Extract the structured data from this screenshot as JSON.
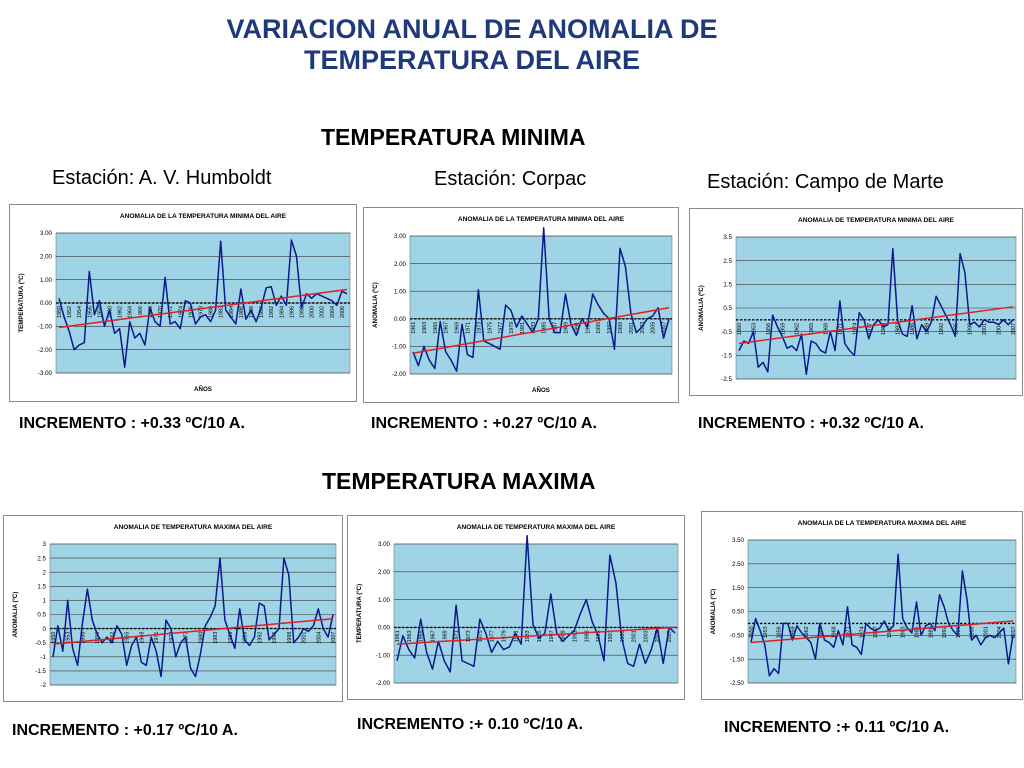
{
  "page": {
    "title_line1": "VARIACION ANUAL DE ANOMALIA DE",
    "title_line2": "TEMPERATURA DEL AIRE",
    "min_section": "TEMPERATURA  MINIMA",
    "max_section": "TEMPERATURA  MAXIMA",
    "station_1": "Estación: A. V. Humboldt",
    "station_2": "Estación: Corpac",
    "station_3": "Estación: Campo de Marte",
    "min_inc_1": "INCREMENTO : +0.33 ºC/10 A.",
    "min_inc_2": "INCREMENTO : +0.27 ºC/10 A.",
    "min_inc_3": "INCREMENTO : +0.32 ºC/10 A.",
    "max_inc_1": "INCREMENTO : +0.17 ºC/10 A.",
    "max_inc_2": "INCREMENTO :+ 0.10 ºC/10 A.",
    "max_inc_3": "INCREMENTO :+ 0.11 ºC/10 A."
  },
  "colors": {
    "title": "#1f3a7a",
    "series": "#0a1a8c",
    "trend": "#e02020",
    "plot_bg": "#9fd3e6",
    "grid": "#3a3a3a"
  },
  "chart_data": [
    {
      "type": "line",
      "title": "ANOMALIA DE LA TEMPERATURA MINIMA DEL AIRE",
      "xlabel": "AÑOS",
      "ylabel": "TEMPERATURA (ºC)",
      "ylim": [
        -3,
        3
      ],
      "yticks": [
        -3,
        -2,
        -1,
        0,
        1,
        2,
        3
      ],
      "ytick_decimals": 2,
      "x": [
        1950,
        1951,
        1952,
        1953,
        1954,
        1955,
        1956,
        1957,
        1958,
        1959,
        1960,
        1961,
        1962,
        1963,
        1964,
        1965,
        1966,
        1967,
        1968,
        1969,
        1970,
        1971,
        1972,
        1973,
        1974,
        1975,
        1976,
        1977,
        1978,
        1979,
        1980,
        1981,
        1982,
        1983,
        1984,
        1985,
        1986,
        1987,
        1988,
        1989,
        1990,
        1991,
        1992,
        1993,
        1994,
        1995,
        1996,
        1997,
        1998,
        1999,
        2000,
        2001,
        2002,
        2003,
        2004,
        2005,
        2006,
        2007
      ],
      "xtick_labels": [
        "1950",
        "1952",
        "1954",
        "1956",
        "1958",
        "1960",
        "1962",
        "1964",
        "1966",
        "1968",
        "1970",
        "1972",
        "1974",
        "1976",
        "1978",
        "1980",
        "1982",
        "1984",
        "1986",
        "1988",
        "1990",
        "1992",
        "1994",
        "1996",
        "1998",
        "2000",
        "2002",
        "2004",
        "2006"
      ],
      "xtick_step": 2,
      "series": [
        {
          "values": [
            0.2,
            -0.6,
            -1.2,
            -2.0,
            -1.8,
            -1.7,
            1.35,
            -0.5,
            0.1,
            -1.0,
            -0.3,
            -1.3,
            -1.1,
            -2.75,
            -0.8,
            -1.5,
            -1.3,
            -1.8,
            -0.2,
            -0.8,
            -1.0,
            1.1,
            -0.9,
            -0.8,
            -1.1,
            0.1,
            0.0,
            -0.9,
            -0.6,
            -0.5,
            -0.8,
            -0.3,
            2.65,
            -0.3,
            -0.6,
            -0.9,
            0.6,
            -0.7,
            -0.3,
            -0.8,
            -0.2,
            0.65,
            0.7,
            -0.1,
            0.3,
            -0.1,
            2.7,
            2.0,
            -0.2,
            0.4,
            0.2,
            0.4,
            0.3,
            0.2,
            0.1,
            -0.1,
            0.5,
            0.4
          ]
        }
      ],
      "trend": [
        -1.05,
        0.58
      ]
    },
    {
      "type": "line",
      "title": "ANOMALIA  DE LA TEMPERATURA MINIMA DEL AIRE",
      "xlabel": "AÑOS",
      "ylabel": "ANOMALIA (ºC)",
      "ylim": [
        -2,
        3
      ],
      "yticks": [
        -2,
        -1,
        0,
        1,
        2,
        3
      ],
      "ytick_decimals": 2,
      "x": [
        1961,
        1962,
        1963,
        1964,
        1965,
        1966,
        1967,
        1968,
        1969,
        1970,
        1971,
        1972,
        1973,
        1974,
        1975,
        1976,
        1977,
        1978,
        1979,
        1980,
        1981,
        1982,
        1983,
        1984,
        1985,
        1986,
        1987,
        1988,
        1989,
        1990,
        1991,
        1992,
        1993,
        1994,
        1995,
        1996,
        1997,
        1998,
        1999,
        2000,
        2001,
        2002,
        2003,
        2004,
        2005,
        2006,
        2007,
        2008
      ],
      "xtick_labels": [
        "1961",
        "1963",
        "1965",
        "1967",
        "1969",
        "1971",
        "1973",
        "1975",
        "1977",
        "1979",
        "1981",
        "1983",
        "1985",
        "1987",
        "1989",
        "1991",
        "1993",
        "1995",
        "1997",
        "1999",
        "2001",
        "2003",
        "2005",
        "2007"
      ],
      "xtick_step": 2,
      "series": [
        {
          "values": [
            -1.2,
            -1.7,
            -1.0,
            -1.5,
            -1.8,
            -0.1,
            -1.2,
            -1.5,
            -1.9,
            -0.2,
            -1.3,
            -1.4,
            1.05,
            -0.8,
            -0.9,
            -1.0,
            -1.1,
            0.5,
            0.3,
            -0.3,
            0.1,
            -0.2,
            -0.5,
            0.0,
            3.3,
            0.0,
            -0.5,
            -0.5,
            0.9,
            -0.2,
            -0.6,
            0.0,
            -0.3,
            0.9,
            0.5,
            0.2,
            0.0,
            -1.1,
            2.55,
            1.9,
            0.2,
            -0.5,
            -0.3,
            0.0,
            0.1,
            0.4,
            -0.7,
            0.0
          ]
        }
      ],
      "trend": [
        -1.25,
        0.4
      ]
    },
    {
      "type": "line",
      "title": "ANOMALIA DE TEMPERATURA MINIMA DEL AIRE",
      "xlabel": "",
      "ylabel": "ANOMALIA (ºC)",
      "ylim": [
        -2.5,
        3.5
      ],
      "yticks": [
        -2.5,
        -1.5,
        -0.5,
        0.5,
        1.5,
        2.5,
        3.5
      ],
      "ytick_decimals": 1,
      "x": [
        1950,
        1951,
        1952,
        1953,
        1954,
        1955,
        1956,
        1957,
        1958,
        1959,
        1960,
        1961,
        1962,
        1963,
        1964,
        1965,
        1966,
        1967,
        1968,
        1969,
        1970,
        1971,
        1972,
        1973,
        1974,
        1975,
        1976,
        1977,
        1978,
        1979,
        1980,
        1981,
        1982,
        1983,
        1984,
        1985,
        1986,
        1987,
        1988,
        1989,
        1990,
        1991,
        1992,
        1993,
        1994,
        1995,
        1996,
        1997,
        1998,
        1999,
        2000,
        2001,
        2002,
        2003,
        2004,
        2005,
        2006,
        2007
      ],
      "xtick_labels": [
        "1950",
        "1953",
        "1956",
        "1959",
        "1962",
        "1965",
        "1968",
        "1971",
        "1974",
        "1977",
        "1980",
        "1983",
        "1986",
        "1989",
        "1992",
        "1995",
        "1998",
        "2001",
        "2004",
        "2007"
      ],
      "xtick_step": 3,
      "series": [
        {
          "values": [
            -1.3,
            -0.9,
            -1.0,
            -0.5,
            -2.0,
            -1.8,
            -2.2,
            0.2,
            -0.3,
            -0.7,
            -1.2,
            -1.1,
            -1.3,
            -0.6,
            -2.3,
            -0.9,
            -1.0,
            -1.3,
            -1.4,
            -0.5,
            -1.3,
            0.8,
            -1.0,
            -1.3,
            -1.5,
            0.3,
            0.0,
            -0.8,
            -0.2,
            0.0,
            -0.3,
            -0.2,
            3.0,
            0.0,
            -0.6,
            -0.7,
            0.6,
            -0.8,
            -0.2,
            -0.5,
            -0.1,
            1.0,
            0.6,
            0.2,
            -0.2,
            -0.7,
            2.8,
            2.0,
            -0.2,
            -0.1,
            -0.3,
            0.0,
            -0.1,
            -0.1,
            -0.2,
            0.0,
            -0.2,
            0.0
          ]
        }
      ],
      "trend": [
        -1.0,
        0.55
      ]
    },
    {
      "type": "line",
      "title": "ANOMALIA DE TEMPERATURA MAXIMA DEL AIRE",
      "xlabel": "",
      "ylabel": "ANOMALIA (ºC)",
      "ylim": [
        -2,
        3
      ],
      "yticks": [
        -2,
        -1.5,
        -1,
        -0.5,
        0,
        0.5,
        1,
        1.5,
        2,
        2.5,
        3
      ],
      "ytick_decimals": -1,
      "x": [
        1950,
        1951,
        1952,
        1953,
        1954,
        1955,
        1956,
        1957,
        1958,
        1959,
        1960,
        1961,
        1962,
        1963,
        1964,
        1965,
        1966,
        1967,
        1968,
        1969,
        1970,
        1971,
        1972,
        1973,
        1974,
        1975,
        1976,
        1977,
        1978,
        1979,
        1980,
        1981,
        1982,
        1983,
        1984,
        1985,
        1986,
        1987,
        1988,
        1989,
        1990,
        1991,
        1992,
        1993,
        1994,
        1995,
        1996,
        1997,
        1998,
        1999,
        2000,
        2001,
        2002,
        2003,
        2004,
        2005,
        2006,
        2007
      ],
      "xtick_labels": [
        "1950",
        "1953",
        "1956",
        "1959",
        "1962",
        "1965",
        "1968",
        "1971",
        "1974",
        "1977",
        "1980",
        "1983",
        "1986",
        "1989",
        "1992",
        "1995",
        "1998",
        "2001",
        "2004",
        "2007"
      ],
      "xtick_step": 3,
      "series": [
        {
          "values": [
            -1.0,
            0.1,
            -0.8,
            1.0,
            -0.7,
            -1.3,
            0.2,
            1.4,
            0.3,
            -0.2,
            -0.5,
            -0.3,
            -0.5,
            0.1,
            -0.2,
            -1.3,
            -0.6,
            -0.3,
            -1.2,
            -1.3,
            -0.3,
            -0.8,
            -1.7,
            0.3,
            0.0,
            -1.0,
            -0.5,
            -0.3,
            -1.4,
            -1.7,
            -0.9,
            0.1,
            0.4,
            0.8,
            2.5,
            0.3,
            -0.2,
            -0.7,
            0.7,
            -0.4,
            -0.6,
            -0.3,
            0.9,
            0.8,
            -0.4,
            -0.2,
            0.0,
            2.5,
            1.9,
            -0.5,
            -0.3,
            0.0,
            -0.1,
            0.1,
            0.7,
            0.0,
            -0.3,
            0.5
          ]
        }
      ],
      "trend": [
        -0.55,
        0.35
      ]
    },
    {
      "type": "line",
      "title": "ANOMALIA DE  TEMPERATURA MAXIMA DEL AIRE",
      "xlabel": "",
      "ylabel": "TEMPERATURA (ºC)",
      "ylim": [
        -2,
        3
      ],
      "yticks": [
        -2,
        -1,
        0,
        1,
        2,
        3
      ],
      "ytick_decimals": 2,
      "x": [
        1961,
        1962,
        1963,
        1964,
        1965,
        1966,
        1967,
        1968,
        1969,
        1970,
        1971,
        1972,
        1973,
        1974,
        1975,
        1976,
        1977,
        1978,
        1979,
        1980,
        1981,
        1982,
        1983,
        1984,
        1985,
        1986,
        1987,
        1988,
        1989,
        1990,
        1991,
        1992,
        1993,
        1994,
        1995,
        1996,
        1997,
        1998,
        1999,
        2000,
        2001,
        2002,
        2003,
        2004,
        2005,
        2006,
        2007,
        2008
      ],
      "xtick_labels": [
        "1961",
        "1963",
        "1965",
        "1967",
        "1969",
        "1971",
        "1973",
        "1975",
        "1977",
        "1979",
        "1981",
        "1983",
        "1985",
        "1987",
        "1989",
        "1991",
        "1993",
        "1995",
        "1997",
        "1999",
        "2001",
        "2003",
        "2005",
        "2007"
      ],
      "xtick_step": 2,
      "series": [
        {
          "values": [
            -1.2,
            -0.3,
            -0.8,
            -1.1,
            0.3,
            -0.9,
            -1.5,
            -0.5,
            -1.2,
            -1.6,
            0.8,
            -1.2,
            -1.3,
            -1.4,
            0.3,
            -0.2,
            -0.9,
            -0.5,
            -0.8,
            -0.7,
            -0.2,
            -0.6,
            3.3,
            0.1,
            -0.4,
            -0.2,
            1.2,
            -0.2,
            -0.5,
            -0.3,
            -0.1,
            0.5,
            1.0,
            0.2,
            -0.3,
            -1.2,
            2.6,
            1.6,
            -0.4,
            -1.3,
            -1.4,
            -0.6,
            -1.3,
            -0.8,
            0.0,
            -1.3,
            0.0,
            -0.2
          ]
        }
      ],
      "trend": [
        -0.6,
        0.0
      ]
    },
    {
      "type": "line",
      "title": "ANOMALIA DE LA TEMPERATURA MAXIMA DEL AIRE",
      "xlabel": "",
      "ylabel": "ANOMALIA (ºC)",
      "ylim": [
        -2.5,
        3.5
      ],
      "yticks": [
        -2.5,
        -1.5,
        -0.5,
        0.5,
        1.5,
        2.5,
        3.5
      ],
      "ytick_decimals": 2,
      "x": [
        1950,
        1951,
        1952,
        1953,
        1954,
        1955,
        1956,
        1957,
        1958,
        1959,
        1960,
        1961,
        1962,
        1963,
        1964,
        1965,
        1966,
        1967,
        1968,
        1969,
        1970,
        1971,
        1972,
        1973,
        1974,
        1975,
        1976,
        1977,
        1978,
        1979,
        1980,
        1981,
        1982,
        1983,
        1984,
        1985,
        1986,
        1987,
        1988,
        1989,
        1990,
        1991,
        1992,
        1993,
        1994,
        1995,
        1996,
        1997,
        1998,
        1999,
        2000,
        2001,
        2002,
        2003,
        2004,
        2005,
        2006,
        2007
      ],
      "xtick_labels": [
        "1950",
        "1953",
        "1956",
        "1959",
        "1962",
        "1965",
        "1968",
        "1971",
        "1974",
        "1977",
        "1980",
        "1983",
        "1986",
        "1989",
        "1992",
        "1995",
        "1998",
        "2001",
        "2004",
        "2007"
      ],
      "xtick_step": 3,
      "series": [
        {
          "values": [
            -0.8,
            0.2,
            -0.3,
            -0.9,
            -2.2,
            -1.9,
            -2.1,
            0.0,
            0.0,
            -0.7,
            -0.1,
            -0.4,
            -0.6,
            -0.8,
            -1.5,
            0.0,
            -0.7,
            -0.8,
            -1.0,
            -0.3,
            -0.9,
            0.7,
            -0.9,
            -1.0,
            -1.3,
            0.0,
            -0.2,
            -0.3,
            -0.2,
            0.1,
            -0.3,
            -0.1,
            2.9,
            0.2,
            -0.2,
            -0.4,
            0.9,
            -0.5,
            -0.1,
            0.0,
            -0.3,
            1.2,
            0.7,
            0.0,
            -0.3,
            -0.5,
            2.2,
            1.0,
            -0.7,
            -0.5,
            -0.9,
            -0.6,
            -0.5,
            -0.6,
            -0.4,
            -0.2,
            -1.7,
            -0.5
          ]
        }
      ],
      "trend": [
        -0.8,
        0.1
      ]
    }
  ]
}
